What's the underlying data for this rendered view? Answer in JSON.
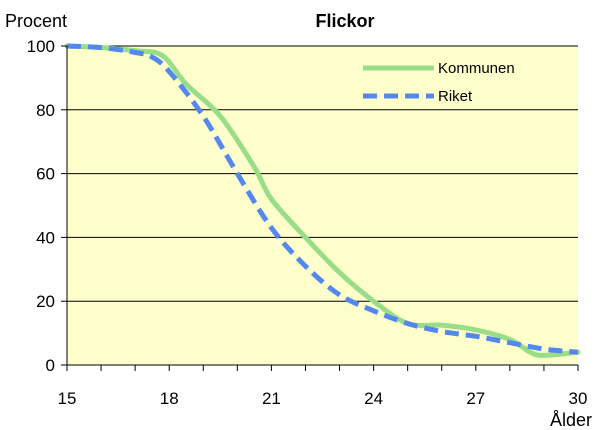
{
  "chart_data": {
    "type": "line",
    "title": "Flickor",
    "ylabel": "Procent",
    "xlabel": "Ålder",
    "xlim": [
      15,
      30
    ],
    "ylim": [
      0,
      100
    ],
    "xticks": [
      15,
      18,
      21,
      24,
      27,
      30
    ],
    "yticks": [
      0,
      20,
      40,
      60,
      80,
      100
    ],
    "grid": "horizontal",
    "legend_position": "top-right",
    "background": "#ffffcc",
    "series": [
      {
        "name": "Kommunen",
        "color": "#99dd88",
        "dash": "solid",
        "x": [
          15,
          16,
          17,
          17.8,
          18.5,
          19.5,
          20.5,
          21,
          22,
          23,
          24,
          25,
          26,
          27,
          28,
          28.6,
          29,
          30
        ],
        "y": [
          100,
          99.5,
          98.5,
          97,
          88,
          78,
          62,
          52,
          40,
          29,
          20,
          13,
          12.5,
          11,
          8,
          4,
          3,
          4
        ]
      },
      {
        "name": "Riket",
        "color": "#5588ee",
        "dash": "dashed",
        "x": [
          15,
          16,
          17,
          17.5,
          18,
          19,
          20,
          21,
          22,
          23,
          24,
          25,
          26,
          27,
          28,
          29,
          30
        ],
        "y": [
          100,
          99.5,
          98,
          96.5,
          92,
          78,
          60,
          43,
          31,
          22,
          17,
          13,
          10.5,
          9,
          7,
          5,
          4
        ]
      }
    ]
  }
}
